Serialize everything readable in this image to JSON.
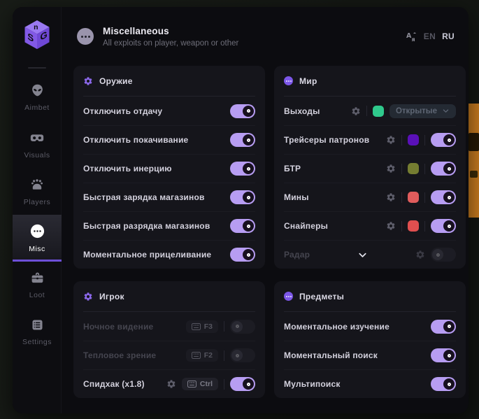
{
  "app": {
    "logo_letters": "SG"
  },
  "sidebar": {
    "items": [
      {
        "label": "Aimbet",
        "icon": "alien-icon",
        "active": false
      },
      {
        "label": "Visuals",
        "icon": "vr-goggles-icon",
        "active": false
      },
      {
        "label": "Players",
        "icon": "players-icon",
        "active": false
      },
      {
        "label": "Misc",
        "icon": "ellipsis-icon",
        "active": true
      },
      {
        "label": "Loot",
        "icon": "briefcase-icon",
        "active": false
      },
      {
        "label": "Settings",
        "icon": "list-icon",
        "active": false
      }
    ]
  },
  "header": {
    "title": "Miscellaneous",
    "subtitle": "All exploits on player, weapon or other",
    "languages": [
      {
        "code": "EN",
        "active": false
      },
      {
        "code": "RU",
        "active": true
      }
    ]
  },
  "panels": [
    {
      "title": "Оружие",
      "icon": "gear-icon",
      "rows": [
        {
          "label": "Отключить отдачу",
          "toggle": "on"
        },
        {
          "label": "Отключить покачивание",
          "toggle": "on"
        },
        {
          "label": "Отключить инерцию",
          "toggle": "on"
        },
        {
          "label": "Быстрая зарядка магазинов",
          "toggle": "on"
        },
        {
          "label": "Быстрая разрядка магазинов",
          "toggle": "on"
        },
        {
          "label": "Моментальное прицеливание",
          "toggle": "on"
        }
      ]
    },
    {
      "title": "Мир",
      "icon": "ellipsis-badge-icon",
      "rows": [
        {
          "label": "Выходы",
          "gear": true,
          "swatch": "#2fc98c",
          "dropdown": "Открытые"
        },
        {
          "label": "Трейсеры патронов",
          "gear": true,
          "swatch": "#5a10b8",
          "toggle": "on"
        },
        {
          "label": "БТР",
          "gear": true,
          "swatch": "#757d31",
          "toggle": "on"
        },
        {
          "label": "Мины",
          "gear": true,
          "swatch": "#e05c5c",
          "toggle": "on"
        },
        {
          "label": "Снайперы",
          "gear": true,
          "swatch": "#e04f4f",
          "toggle": "on"
        },
        {
          "label": "Радар",
          "dim": true,
          "chevron": true,
          "gear": true,
          "toggle": "off"
        }
      ]
    },
    {
      "title": "Игрок",
      "icon": "gear-icon",
      "rows": [
        {
          "label": "Ночное видение",
          "dim": true,
          "key": "F3",
          "toggle": "off"
        },
        {
          "label": "Тепловое зрение",
          "dim": true,
          "key": "F2",
          "toggle": "off"
        },
        {
          "label": "Спидхак (x1.8)",
          "gear": true,
          "key": "Ctrl",
          "toggle": "on"
        }
      ]
    },
    {
      "title": "Предметы",
      "icon": "ellipsis-badge-icon",
      "rows": [
        {
          "label": "Моментальное изучение",
          "toggle": "on"
        },
        {
          "label": "Моментальный поиск",
          "toggle": "on"
        },
        {
          "label": "Мультипоиск",
          "toggle": "on"
        }
      ]
    }
  ],
  "colors": {
    "accent": "#8b68ea",
    "logo": "#9a79f2",
    "toggle_on_track": "#b79df2",
    "nav_active_underline": "#6d4fd8",
    "artifact_orange": "#c4791f"
  }
}
